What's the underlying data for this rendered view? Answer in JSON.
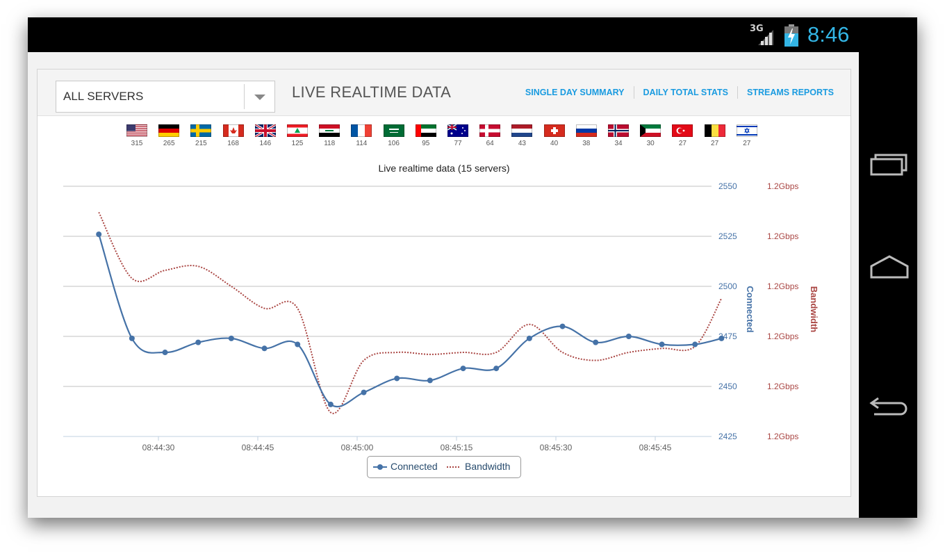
{
  "status_bar": {
    "network": "3G",
    "time": "8:46",
    "accent": "#33b5e5"
  },
  "header": {
    "server_select": {
      "value": "ALL SERVERS"
    },
    "title": "LIVE REALTIME DATA",
    "links": [
      "SINGLE DAY SUMMARY",
      "DAILY TOTAL STATS",
      "STREAMS REPORTS"
    ]
  },
  "flags": [
    {
      "country": "us",
      "count": "315"
    },
    {
      "country": "de",
      "count": "265"
    },
    {
      "country": "se",
      "count": "215"
    },
    {
      "country": "ca",
      "count": "168"
    },
    {
      "country": "gb",
      "count": "146"
    },
    {
      "country": "lb",
      "count": "125"
    },
    {
      "country": "iq",
      "count": "118"
    },
    {
      "country": "fr",
      "count": "114"
    },
    {
      "country": "sa",
      "count": "106"
    },
    {
      "country": "ae",
      "count": "95"
    },
    {
      "country": "au",
      "count": "77"
    },
    {
      "country": "dk",
      "count": "64"
    },
    {
      "country": "nl",
      "count": "43"
    },
    {
      "country": "ch",
      "count": "40"
    },
    {
      "country": "ru",
      "count": "38"
    },
    {
      "country": "no",
      "count": "34"
    },
    {
      "country": "kw",
      "count": "30"
    },
    {
      "country": "tr",
      "count": "27"
    },
    {
      "country": "be",
      "count": "27"
    },
    {
      "country": "il",
      "count": "27"
    }
  ],
  "chart_data": {
    "type": "line",
    "title": "Live realtime data (15 servers)",
    "x_ticks": [
      "08:44:30",
      "08:44:45",
      "08:45:00",
      "08:45:15",
      "08:45:30",
      "08:45:45"
    ],
    "y_left": {
      "label": "Connected",
      "ticks": [
        2550,
        2525,
        2500,
        2475,
        2450,
        2425
      ],
      "range": [
        2425,
        2550
      ]
    },
    "y_right": {
      "label": "Bandwidth",
      "ticks": [
        "1.2Gbps",
        "1.2Gbps",
        "1.2Gbps",
        "1.2Gbps",
        "1.2Gbps",
        "1.2Gbps"
      ]
    },
    "x": [
      "08:44:21",
      "08:44:26",
      "08:44:31",
      "08:44:36",
      "08:44:41",
      "08:44:46",
      "08:44:51",
      "08:44:56",
      "08:45:01",
      "08:45:06",
      "08:45:11",
      "08:45:16",
      "08:45:21",
      "08:45:26",
      "08:45:31",
      "08:45:36",
      "08:45:41",
      "08:45:46",
      "08:45:51",
      "08:45:55"
    ],
    "series": [
      {
        "name": "Connected",
        "color": "#4572a7",
        "style": "solid",
        "values": [
          2526,
          2474,
          2467,
          2472,
          2474,
          2469,
          2471,
          2441,
          2447,
          2454,
          2453,
          2459,
          2459,
          2474,
          2480,
          2472,
          2475,
          2471,
          2471,
          2474
        ]
      },
      {
        "name": "Bandwidth",
        "color": "#aa4643",
        "style": "dotted",
        "values": [
          2537,
          2504,
          2508,
          2510,
          2500,
          2489,
          2489,
          2437,
          2463,
          2467,
          2466,
          2467,
          2467,
          2481,
          2467,
          2463,
          2467,
          2469,
          2470,
          2494
        ]
      }
    ],
    "grid": true,
    "legend": "bottom-center"
  }
}
